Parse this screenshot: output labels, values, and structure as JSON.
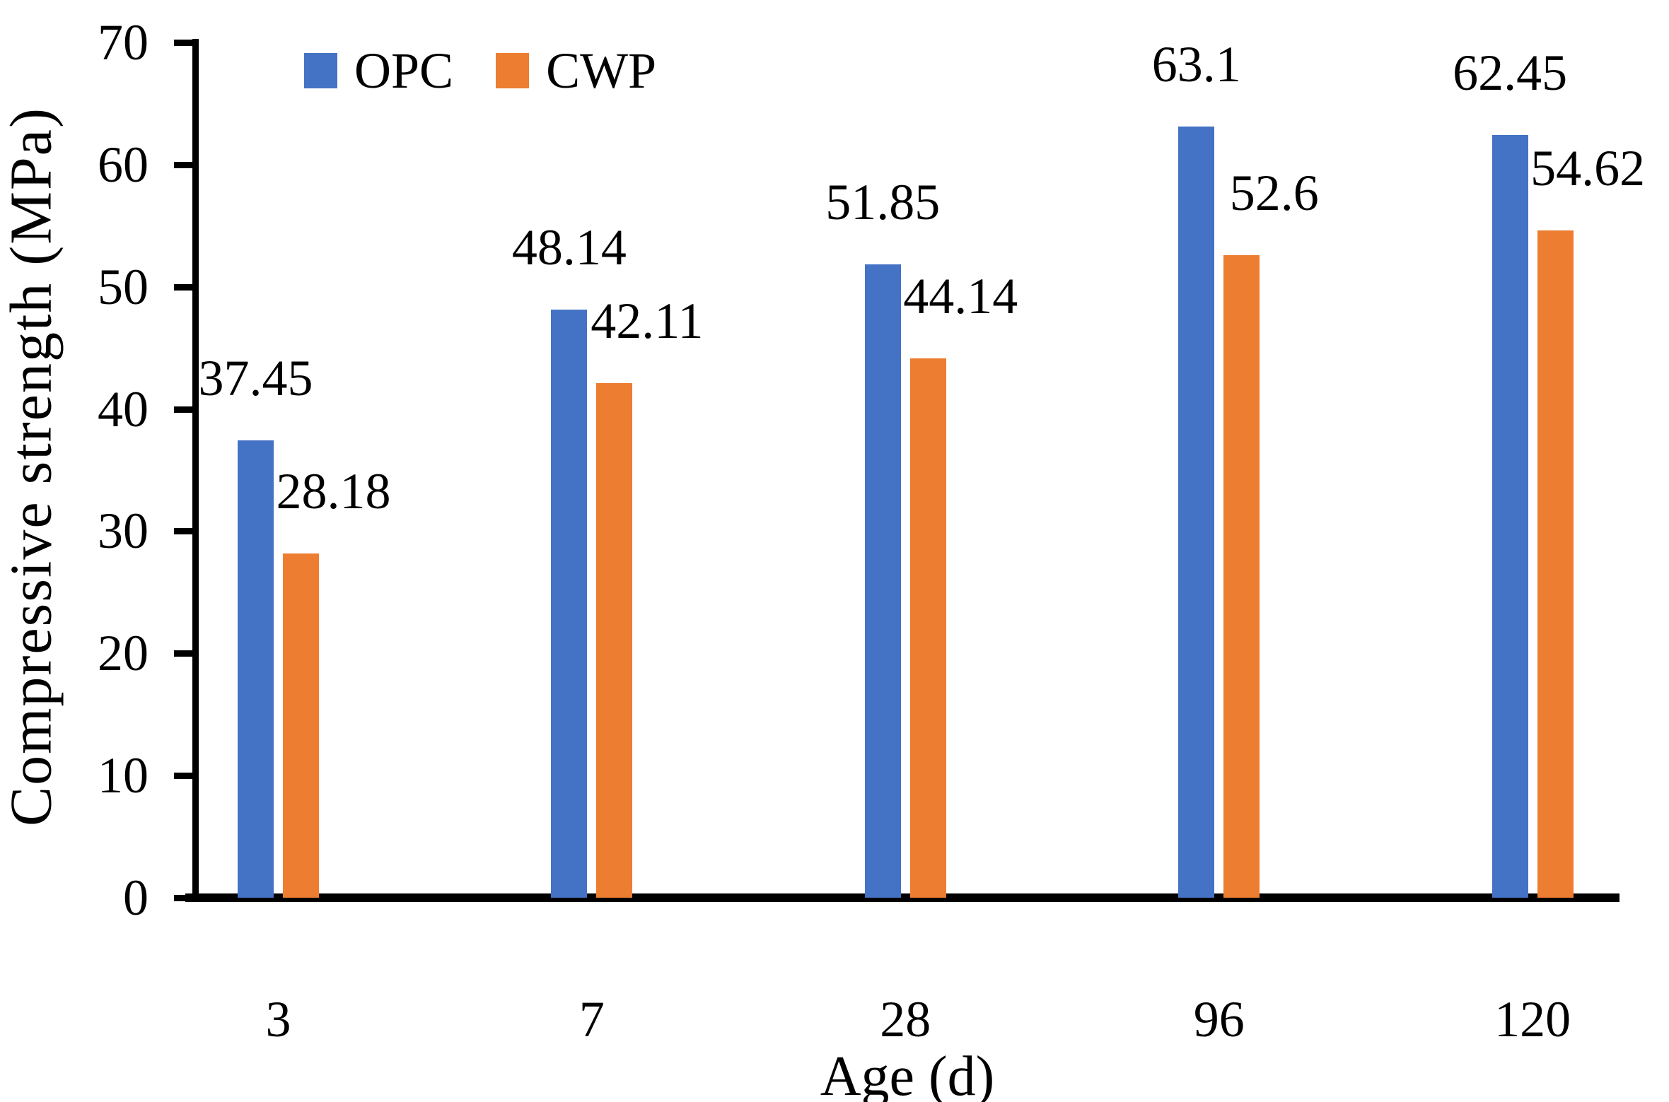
{
  "chart_data": {
    "type": "bar",
    "title": "",
    "xlabel": "Age (d)",
    "ylabel": "Compressive strength (MPa)",
    "categories": [
      "3",
      "7",
      "28",
      "96",
      "120"
    ],
    "series": [
      {
        "name": "OPC",
        "color": "#4472C4",
        "values": [
          37.45,
          48.14,
          51.85,
          63.1,
          62.45
        ],
        "labels": [
          "37.45",
          "48.14",
          "51.85",
          "63.1",
          "62.45"
        ]
      },
      {
        "name": "CWP",
        "color": "#ED7D31",
        "values": [
          28.18,
          42.11,
          44.14,
          52.6,
          54.62
        ],
        "labels": [
          "28.18",
          "42.11",
          "44.14",
          "52.6",
          "54.62"
        ]
      }
    ],
    "ylim": [
      0,
      70
    ],
    "yticks": [
      0,
      10,
      20,
      30,
      40,
      50,
      60,
      70
    ],
    "legend_position": "top",
    "grid": false,
    "axis_color": "#000000",
    "background_color": "#FFFFFF"
  }
}
